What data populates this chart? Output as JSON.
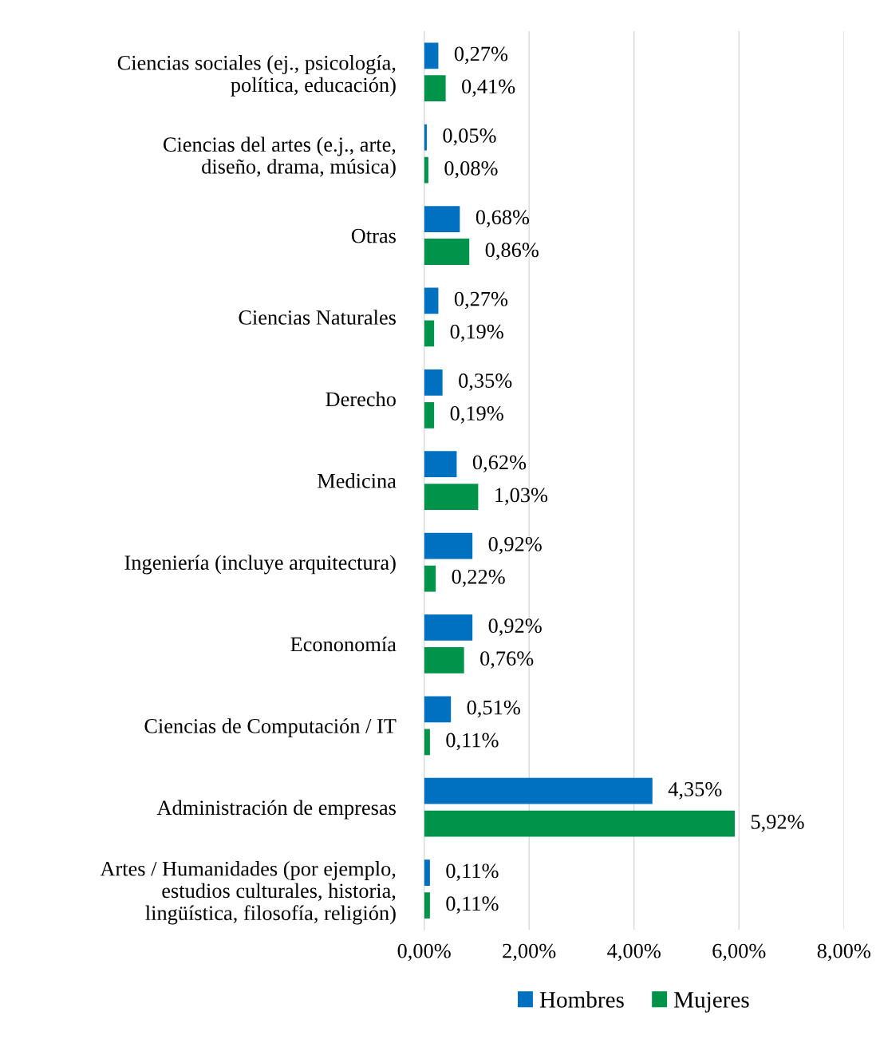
{
  "chart_data": {
    "type": "bar",
    "orientation": "horizontal",
    "categories": [
      "Ciencias sociales (ej., psicología, política, educación)",
      "Ciencias del artes (e.j., arte, diseño, drama, música)",
      "Otras",
      "Ciencias Naturales",
      "Derecho",
      "Medicina",
      "Ingeniería (incluye arquitectura)",
      "Econonomía",
      "Ciencias de Computación / IT",
      "Administración de empresas",
      "Artes / Humanidades (por ejemplo, estudios culturales, historia, lingüística, filosofía, religión)"
    ],
    "series": [
      {
        "name": "Hombres",
        "color": "#0070c0",
        "values": [
          0.27,
          0.05,
          0.68,
          0.27,
          0.35,
          0.62,
          0.92,
          0.92,
          0.51,
          4.35,
          0.11
        ],
        "value_labels": [
          "0,27%",
          "0,05%",
          "0,68%",
          "0,27%",
          "0,35%",
          "0,62%",
          "0,92%",
          "0,92%",
          "0,51%",
          "4,35%",
          "0,11%"
        ]
      },
      {
        "name": "Mujeres",
        "color": "#00944a",
        "values": [
          0.41,
          0.08,
          0.86,
          0.19,
          0.19,
          1.03,
          0.22,
          0.76,
          0.11,
          5.92,
          0.11
        ],
        "value_labels": [
          "0,41%",
          "0,08%",
          "0,86%",
          "0,19%",
          "0,19%",
          "1,03%",
          "0,22%",
          "0,76%",
          "0,11%",
          "5,92%",
          "0,11%"
        ]
      }
    ],
    "xlim": [
      0,
      8
    ],
    "xticks": [
      {
        "value": 0,
        "label": "0,00%"
      },
      {
        "value": 2,
        "label": "2,00%"
      },
      {
        "value": 4,
        "label": "4,00%"
      },
      {
        "value": 6,
        "label": "6,00%"
      },
      {
        "value": 8,
        "label": "8,00%"
      }
    ],
    "grid": "x",
    "legend": "bottom"
  }
}
